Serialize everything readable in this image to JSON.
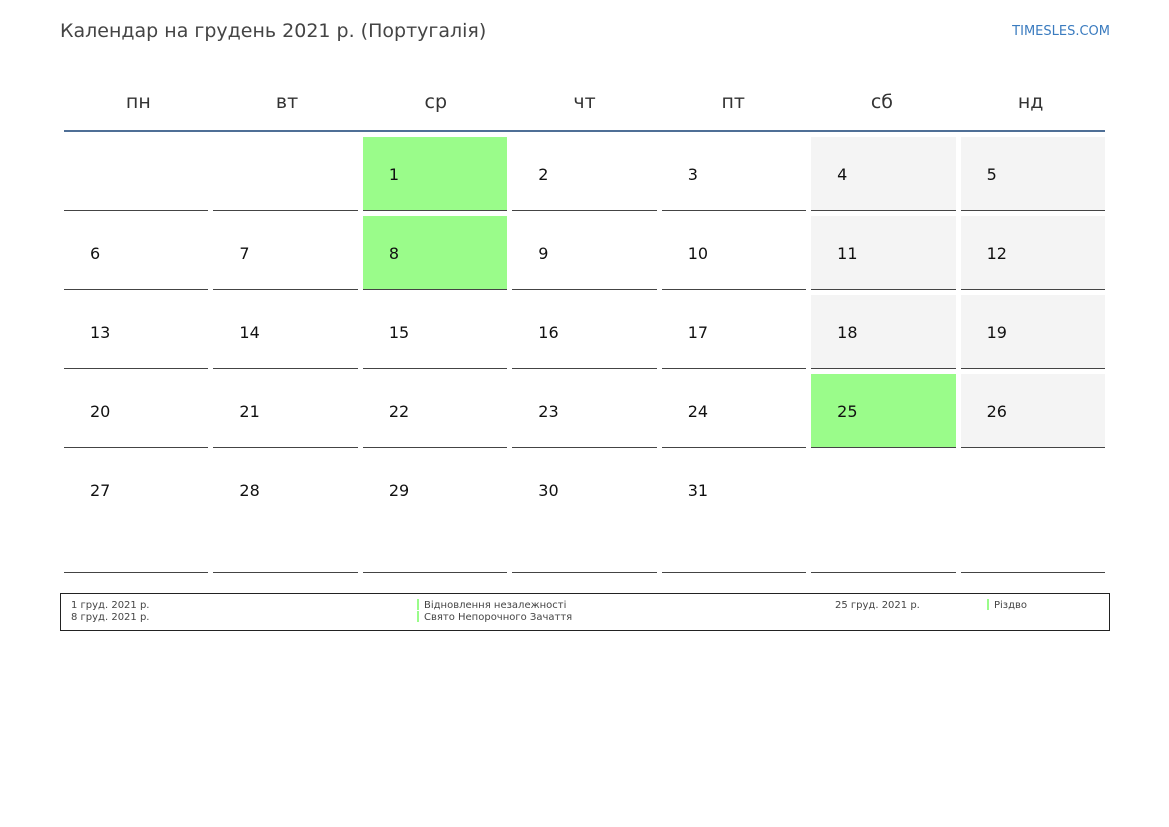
{
  "title": "Календар на грудень 2021 р. (Португалія)",
  "site": "TIMESLES.COM",
  "colors": {
    "holiday": "#9afc8a",
    "weekend": "#f4f4f4",
    "accent_line": "#4f6f96",
    "link": "#3a7bbf"
  },
  "weekdays": [
    "пн",
    "вт",
    "ср",
    "чт",
    "пт",
    "сб",
    "нд"
  ],
  "weeks": [
    [
      "",
      "",
      "1",
      "2",
      "3",
      "4",
      "5"
    ],
    [
      "6",
      "7",
      "8",
      "9",
      "10",
      "11",
      "12"
    ],
    [
      "13",
      "14",
      "15",
      "16",
      "17",
      "18",
      "19"
    ],
    [
      "20",
      "21",
      "22",
      "23",
      "24",
      "25",
      "26"
    ],
    [
      "27",
      "28",
      "29",
      "30",
      "31",
      "",
      ""
    ]
  ],
  "holidays": [
    {
      "date": "1 груд. 2021 р.",
      "name": "Відновлення незалежності"
    },
    {
      "date": "8 груд. 2021 р.",
      "name": "Свято Непорочного Зачаття"
    },
    {
      "date": "25 груд. 2021 р.",
      "name": "Різдво"
    }
  ]
}
